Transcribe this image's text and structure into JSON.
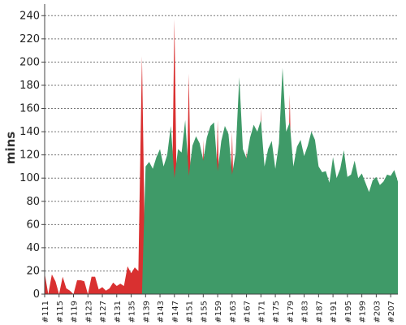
{
  "chart_data": {
    "type": "area",
    "ylabel": "mins",
    "xlabel": "",
    "ylim": [
      0,
      250
    ],
    "y_ticks": [
      0,
      20,
      40,
      60,
      80,
      100,
      120,
      140,
      160,
      180,
      200,
      220,
      240
    ],
    "grid": "horizontal dashed",
    "x_tick_labels": [
      "#111",
      "#115",
      "#119",
      "#123",
      "#127",
      "#131",
      "#135",
      "#139",
      "#143",
      "#147",
      "#151",
      "#155",
      "#159",
      "#163",
      "#167",
      "#171",
      "#175",
      "#179",
      "#183",
      "#187",
      "#191",
      "#195",
      "#199",
      "#203",
      "#207"
    ],
    "x_start": 111,
    "x_end": 209,
    "series": [
      {
        "color": "#d93030",
        "points": [
          [
            111,
            18
          ],
          [
            112,
            0
          ],
          [
            113,
            17
          ],
          [
            114,
            11
          ],
          [
            115,
            0
          ],
          [
            116,
            15
          ],
          [
            117,
            5
          ],
          [
            118,
            3
          ],
          [
            119,
            0
          ],
          [
            120,
            12
          ],
          [
            121,
            12
          ],
          [
            122,
            11
          ],
          [
            123,
            0
          ],
          [
            124,
            15
          ],
          [
            125,
            15
          ],
          [
            126,
            4
          ],
          [
            127,
            6
          ],
          [
            128,
            3
          ],
          [
            129,
            5
          ],
          [
            130,
            10
          ],
          [
            131,
            7
          ],
          [
            132,
            9
          ],
          [
            133,
            7
          ],
          [
            134,
            24
          ],
          [
            135,
            18
          ],
          [
            136,
            23
          ],
          [
            137,
            20
          ],
          [
            138,
            205
          ],
          [
            139,
            0
          ],
          [
            142,
            0
          ],
          [
            143,
            125
          ],
          [
            144,
            0
          ],
          [
            146,
            0
          ],
          [
            147,
            237
          ],
          [
            148,
            0
          ],
          [
            150,
            0
          ],
          [
            151,
            190
          ],
          [
            152,
            0
          ],
          [
            154,
            0
          ],
          [
            155,
            133
          ],
          [
            156,
            0
          ],
          [
            158,
            0
          ],
          [
            159,
            150
          ],
          [
            160,
            0
          ],
          [
            162,
            0
          ],
          [
            163,
            140
          ],
          [
            164,
            0
          ],
          [
            166,
            0
          ],
          [
            167,
            125
          ],
          [
            168,
            0
          ],
          [
            170,
            0
          ],
          [
            171,
            160
          ],
          [
            172,
            0
          ],
          [
            173,
            0
          ],
          [
            174,
            132
          ],
          [
            175,
            0
          ],
          [
            178,
            0
          ],
          [
            179,
            172
          ],
          [
            180,
            0
          ]
        ]
      },
      {
        "color": "#3f9a68",
        "points": [
          [
            138,
            0
          ],
          [
            139,
            110
          ],
          [
            140,
            114
          ],
          [
            141,
            108
          ],
          [
            142,
            118
          ],
          [
            143,
            125
          ],
          [
            144,
            110
          ],
          [
            145,
            120
          ],
          [
            146,
            145
          ],
          [
            147,
            100
          ],
          [
            148,
            125
          ],
          [
            149,
            122
          ],
          [
            150,
            150
          ],
          [
            151,
            102
          ],
          [
            152,
            128
          ],
          [
            153,
            136
          ],
          [
            154,
            130
          ],
          [
            155,
            115
          ],
          [
            156,
            135
          ],
          [
            157,
            145
          ],
          [
            158,
            148
          ],
          [
            159,
            106
          ],
          [
            160,
            132
          ],
          [
            161,
            145
          ],
          [
            162,
            138
          ],
          [
            163,
            103
          ],
          [
            164,
            122
          ],
          [
            165,
            187
          ],
          [
            166,
            125
          ],
          [
            167,
            117
          ],
          [
            168,
            135
          ],
          [
            169,
            146
          ],
          [
            170,
            140
          ],
          [
            171,
            150
          ],
          [
            172,
            110
          ],
          [
            173,
            125
          ],
          [
            174,
            132
          ],
          [
            175,
            108
          ],
          [
            176,
            130
          ],
          [
            177,
            195
          ],
          [
            178,
            140
          ],
          [
            179,
            148
          ],
          [
            180,
            110
          ],
          [
            181,
            127
          ],
          [
            182,
            133
          ],
          [
            183,
            119
          ],
          [
            184,
            128
          ],
          [
            185,
            140
          ],
          [
            186,
            133
          ],
          [
            187,
            110
          ],
          [
            188,
            105
          ],
          [
            189,
            106
          ],
          [
            190,
            96
          ],
          [
            191,
            118
          ],
          [
            192,
            100
          ],
          [
            193,
            108
          ],
          [
            194,
            124
          ],
          [
            195,
            101
          ],
          [
            196,
            103
          ],
          [
            197,
            115
          ],
          [
            198,
            100
          ],
          [
            199,
            104
          ],
          [
            200,
            96
          ],
          [
            201,
            88
          ],
          [
            202,
            98
          ],
          [
            203,
            101
          ],
          [
            204,
            94
          ],
          [
            205,
            97
          ],
          [
            206,
            103
          ],
          [
            207,
            102
          ],
          [
            208,
            107
          ],
          [
            209,
            97
          ]
        ]
      }
    ]
  }
}
